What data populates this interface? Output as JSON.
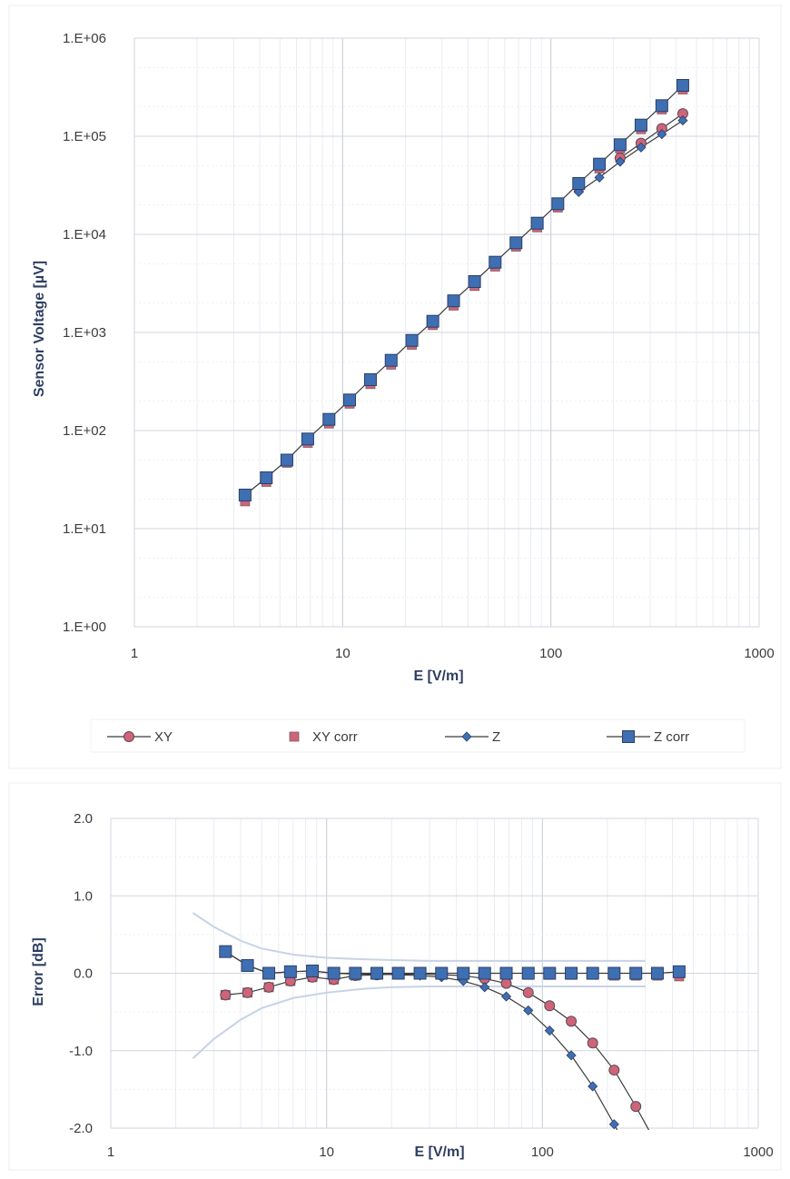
{
  "chart_data": [
    {
      "type": "line",
      "xscale": "log",
      "yscale": "log",
      "xlim": [
        1,
        1000
      ],
      "ylim": [
        1,
        1000000
      ],
      "xlabel": "E [V/m]",
      "ylabel": "Sensor Voltage [µV]",
      "x_ticks": [
        "1",
        "10",
        "100",
        "1000"
      ],
      "y_ticks": [
        "1.E+00",
        "1.E+01",
        "1.E+02",
        "1.E+03",
        "1.E+04",
        "1.E+05",
        "1.E+06"
      ],
      "x": [
        3.4,
        4.3,
        5.4,
        6.8,
        8.6,
        10.8,
        13.6,
        17.1,
        21.5,
        27.1,
        34.1,
        43,
        54,
        68,
        86,
        108,
        136,
        171,
        215,
        271,
        341,
        430
      ],
      "series": [
        {
          "name": "XY",
          "marker": "circle",
          "color": "#cf6478",
          "values": [
            null,
            null,
            null,
            null,
            null,
            null,
            null,
            null,
            null,
            null,
            null,
            null,
            null,
            null,
            null,
            null,
            null,
            null,
            60000,
            85000,
            120000,
            170000
          ]
        },
        {
          "name": "XY corr",
          "marker": "square-small",
          "color": "#cf6478",
          "values": [
            19,
            30,
            47,
            75,
            118,
            188,
            298,
            470,
            750,
            1190,
            1880,
            2980,
            4700,
            7500,
            11800,
            18800,
            29800,
            47000,
            75000,
            118000,
            188000,
            300000
          ]
        },
        {
          "name": "Z",
          "marker": "diamond",
          "color": "#3f6fb3",
          "values": [
            null,
            null,
            null,
            null,
            null,
            null,
            null,
            null,
            null,
            null,
            null,
            null,
            null,
            null,
            null,
            null,
            27000,
            38000,
            55000,
            77000,
            105000,
            145000
          ]
        },
        {
          "name": "Z corr",
          "marker": "square",
          "color": "#3f6fb3",
          "values": [
            22,
            33,
            50,
            82,
            130,
            205,
            330,
            520,
            830,
            1300,
            2100,
            3300,
            5200,
            8200,
            13000,
            20500,
            33000,
            52000,
            82000,
            130000,
            205000,
            330000
          ]
        }
      ],
      "legend": "bottom"
    },
    {
      "type": "line",
      "xscale": "log",
      "xlim": [
        1,
        1000
      ],
      "ylim": [
        -2.0,
        2.0
      ],
      "xlabel": "E [V/m]",
      "ylabel": "Error [dB]",
      "x_ticks": [
        "1",
        "10",
        "100",
        "1000"
      ],
      "y_ticks": [
        "2.0",
        "1.0",
        "0.0",
        "-1.0",
        "-2.0"
      ],
      "x": [
        3.4,
        4.3,
        5.4,
        6.8,
        8.6,
        10.8,
        13.6,
        17.1,
        21.5,
        27.1,
        34.1,
        43,
        54,
        68,
        86,
        108,
        136,
        171,
        215,
        271,
        341,
        430
      ],
      "series": [
        {
          "name": "XY",
          "marker": "circle",
          "color": "#cf6478",
          "values": [
            -0.28,
            -0.25,
            -0.18,
            -0.1,
            -0.05,
            -0.08,
            -0.03,
            -0.02,
            -0.01,
            -0.01,
            -0.02,
            -0.03,
            -0.07,
            -0.13,
            -0.25,
            -0.42,
            -0.62,
            -0.9,
            -1.25,
            -1.72,
            null,
            null
          ]
        },
        {
          "name": "XY corr",
          "marker": "square-small",
          "color": "#cf6478",
          "values": [
            -0.28,
            -0.25,
            -0.18,
            -0.1,
            -0.05,
            -0.08,
            -0.03,
            -0.02,
            -0.01,
            -0.01,
            -0.02,
            -0.02,
            -0.02,
            -0.02,
            -0.02,
            -0.02,
            -0.02,
            -0.02,
            -0.03,
            -0.03,
            -0.03,
            -0.04
          ]
        },
        {
          "name": "Z",
          "marker": "diamond",
          "color": "#3f6fb3",
          "values": [
            0.28,
            0.1,
            0.0,
            0.02,
            0.03,
            0.0,
            -0.01,
            -0.01,
            -0.02,
            -0.03,
            -0.05,
            -0.1,
            -0.18,
            -0.3,
            -0.48,
            -0.74,
            -1.06,
            -1.46,
            -1.95,
            null,
            null,
            null
          ]
        },
        {
          "name": "Z corr",
          "marker": "square",
          "color": "#3f6fb3",
          "values": [
            0.28,
            0.1,
            0.0,
            0.02,
            0.03,
            0.0,
            0.0,
            0.0,
            0.0,
            0.0,
            0.0,
            0.0,
            0.0,
            0.0,
            0.0,
            0.0,
            0.0,
            0.0,
            0.0,
            0.0,
            0.0,
            0.02
          ]
        }
      ],
      "uncertainty_band": {
        "x": [
          2.4,
          3,
          4,
          5,
          7,
          10,
          15,
          20,
          30,
          50,
          100,
          200,
          300
        ],
        "upper": [
          0.78,
          0.6,
          0.42,
          0.32,
          0.24,
          0.2,
          0.18,
          0.17,
          0.16,
          0.16,
          0.16,
          0.16,
          0.16
        ],
        "lower": [
          -1.1,
          -0.85,
          -0.6,
          -0.45,
          -0.32,
          -0.25,
          -0.2,
          -0.18,
          -0.17,
          -0.17,
          -0.17,
          -0.17,
          -0.17
        ]
      }
    }
  ]
}
